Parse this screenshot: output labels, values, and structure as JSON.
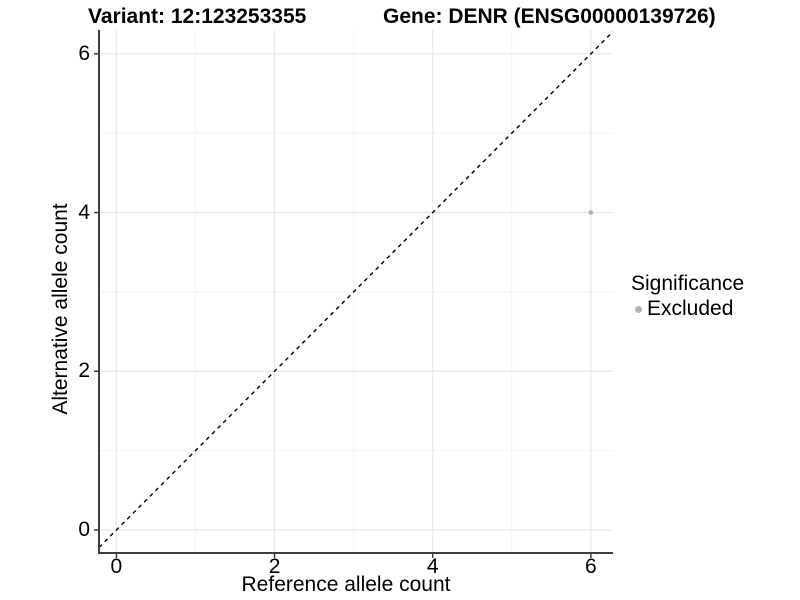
{
  "header": {
    "variant_title": "Variant: 12:123253355",
    "gene_title": "Gene: DENR (ENSG00000139726)"
  },
  "chart_data": {
    "type": "scatter",
    "xlabel": "Reference allele count",
    "ylabel": "Alternative allele count",
    "x_ticks": [
      0,
      2,
      4,
      6
    ],
    "y_ticks": [
      0,
      2,
      4,
      6
    ],
    "x_minor": [
      1,
      3,
      5
    ],
    "y_minor": [
      1,
      3,
      5
    ],
    "xlim": [
      -0.22,
      6.28
    ],
    "ylim": [
      -0.29,
      6.3
    ],
    "grid": true,
    "reference_line": {
      "type": "identity",
      "slope": 1,
      "intercept": 0,
      "style": "dashed"
    },
    "series": [
      {
        "name": "Excluded",
        "color": "#b3b3b3",
        "points": [
          {
            "x": 6,
            "y": 4
          }
        ]
      }
    ],
    "legend": {
      "title": "Significance",
      "position": "right",
      "entries": [
        {
          "label": "Excluded",
          "color": "#b3b3b3"
        }
      ]
    }
  },
  "colors": {
    "background": "#ffffff",
    "grid_major": "#e7e7e7",
    "grid_minor": "#f2f2f2",
    "axis": "#3e3e3e",
    "dashed_line": "#000000",
    "point": "#b3b3b3",
    "text": "#000000"
  }
}
